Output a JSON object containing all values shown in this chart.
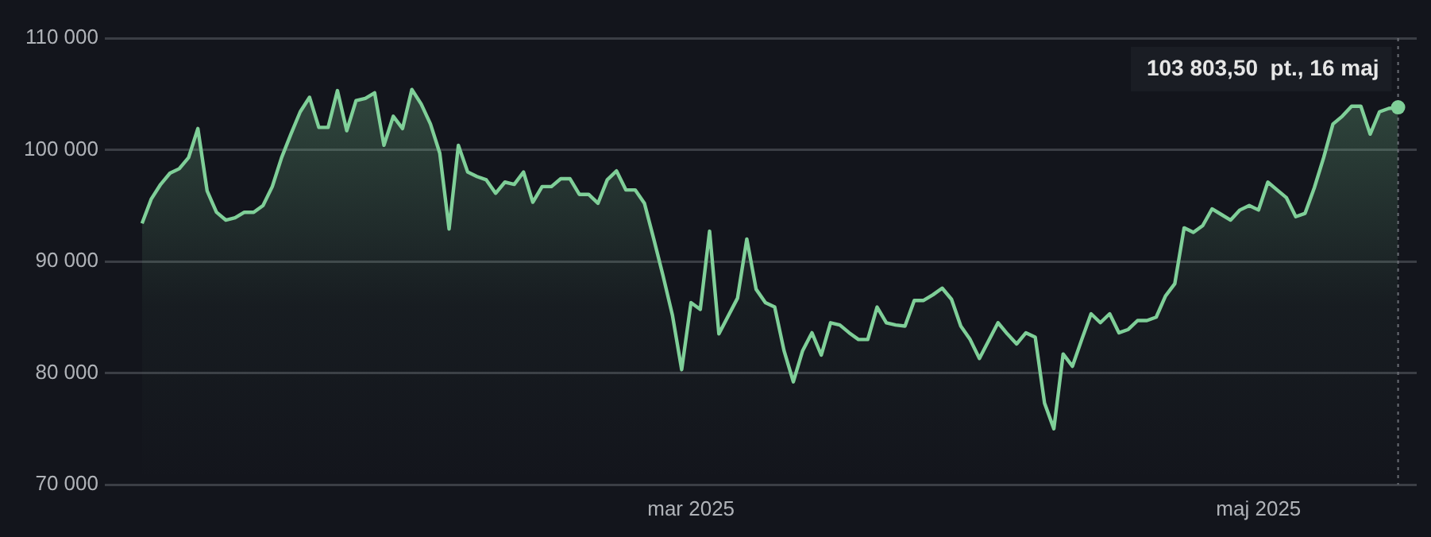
{
  "chart_data": {
    "type": "area",
    "x": [
      "2025-01-01",
      "2025-01-02",
      "2025-01-03",
      "2025-01-04",
      "2025-01-05",
      "2025-01-06",
      "2025-01-07",
      "2025-01-08",
      "2025-01-09",
      "2025-01-10",
      "2025-01-11",
      "2025-01-12",
      "2025-01-13",
      "2025-01-14",
      "2025-01-15",
      "2025-01-16",
      "2025-01-17",
      "2025-01-18",
      "2025-01-19",
      "2025-01-20",
      "2025-01-21",
      "2025-01-22",
      "2025-01-23",
      "2025-01-24",
      "2025-01-25",
      "2025-01-26",
      "2025-01-27",
      "2025-01-28",
      "2025-01-29",
      "2025-01-30",
      "2025-01-31",
      "2025-02-01",
      "2025-02-02",
      "2025-02-03",
      "2025-02-04",
      "2025-02-05",
      "2025-02-06",
      "2025-02-07",
      "2025-02-08",
      "2025-02-09",
      "2025-02-10",
      "2025-02-11",
      "2025-02-12",
      "2025-02-13",
      "2025-02-14",
      "2025-02-15",
      "2025-02-16",
      "2025-02-17",
      "2025-02-18",
      "2025-02-19",
      "2025-02-20",
      "2025-02-21",
      "2025-02-22",
      "2025-02-23",
      "2025-02-24",
      "2025-02-25",
      "2025-02-26",
      "2025-02-27",
      "2025-02-28",
      "2025-03-01",
      "2025-03-02",
      "2025-03-03",
      "2025-03-04",
      "2025-03-06",
      "2025-03-07",
      "2025-03-08",
      "2025-03-09",
      "2025-03-10",
      "2025-03-11",
      "2025-03-12",
      "2025-03-13",
      "2025-03-14",
      "2025-03-15",
      "2025-03-16",
      "2025-03-17",
      "2025-03-18",
      "2025-03-19",
      "2025-03-20",
      "2025-03-21",
      "2025-03-22",
      "2025-03-23",
      "2025-03-24",
      "2025-03-25",
      "2025-03-26",
      "2025-03-27",
      "2025-03-28",
      "2025-03-29",
      "2025-03-30",
      "2025-03-31",
      "2025-04-01",
      "2025-04-02",
      "2025-04-03",
      "2025-04-04",
      "2025-04-05",
      "2025-04-06",
      "2025-04-07",
      "2025-04-08",
      "2025-04-09",
      "2025-04-10",
      "2025-04-11",
      "2025-04-12",
      "2025-04-13",
      "2025-04-14",
      "2025-04-15",
      "2025-04-16",
      "2025-04-17",
      "2025-04-18",
      "2025-04-19",
      "2025-04-20",
      "2025-04-21",
      "2025-04-22",
      "2025-04-23",
      "2025-04-24",
      "2025-04-25",
      "2025-04-26",
      "2025-04-27",
      "2025-04-28",
      "2025-04-29",
      "2025-04-30",
      "2025-05-01",
      "2025-05-02",
      "2025-05-03",
      "2025-05-04",
      "2025-05-05",
      "2025-05-06",
      "2025-05-07",
      "2025-05-08",
      "2025-05-09",
      "2025-05-10",
      "2025-05-11",
      "2025-05-12",
      "2025-05-13",
      "2025-05-14",
      "2025-05-15",
      "2025-05-16"
    ],
    "values": [
      93400,
      95600,
      96900,
      97900,
      98300,
      99300,
      101900,
      96300,
      94400,
      93700,
      93900,
      94400,
      94400,
      95000,
      96700,
      99300,
      101400,
      103400,
      104700,
      102000,
      102000,
      105300,
      101700,
      104400,
      104600,
      105100,
      100400,
      103000,
      101900,
      105400,
      104100,
      102300,
      99700,
      92900,
      100400,
      98000,
      97600,
      97300,
      96100,
      97100,
      96900,
      98000,
      95300,
      96700,
      96700,
      97400,
      97400,
      96000,
      96000,
      95200,
      97300,
      98100,
      96400,
      96400,
      95200,
      92000,
      88700,
      85200,
      80300,
      86300,
      85700,
      92700,
      83500,
      86700,
      92000,
      87500,
      86300,
      85900,
      82000,
      79200,
      82000,
      83600,
      81600,
      84500,
      84300,
      83600,
      83000,
      83000,
      85900,
      84500,
      84300,
      84200,
      86500,
      86500,
      87000,
      87600,
      86600,
      84200,
      83000,
      81300,
      82900,
      84500,
      83500,
      82600,
      83600,
      83200,
      77300,
      75000,
      81700,
      80600,
      83000,
      85300,
      84500,
      85300,
      83600,
      83900,
      84700,
      84700,
      85000,
      86900,
      88000,
      93000,
      92600,
      93200,
      94700,
      94200,
      93700,
      94600,
      95000,
      94600,
      97100,
      96400,
      95700,
      94000,
      94300,
      96600,
      99300,
      102300,
      103000,
      103900,
      103900,
      101400,
      103400,
      103700,
      103803.5
    ],
    "color": "#7fcf98",
    "xlim": [
      "2024-12-28",
      "2025-05-18"
    ],
    "xticks": [
      {
        "value": "2025-03-01",
        "label": "mar 2025"
      },
      {
        "value": "2025-05-01",
        "label": "maj 2025"
      }
    ],
    "ylim": [
      70000,
      110000
    ],
    "yticks": [
      {
        "value": 70000,
        "label": "70 000"
      },
      {
        "value": 80000,
        "label": "80 000"
      },
      {
        "value": 90000,
        "label": "90 000"
      },
      {
        "value": 100000,
        "label": "100 000"
      },
      {
        "value": 110000,
        "label": "110 000"
      }
    ],
    "grid": "y",
    "legend": false,
    "marker": "none",
    "line_style": "solid",
    "ref_lines": [
      {
        "axis": "x",
        "value": "2025-05-16",
        "label": null,
        "line_style": "dotted",
        "color": "#6b6e75"
      }
    ],
    "annotations": [
      {
        "text": "103 803,50  pt., 16 maj",
        "x": "2025-05-16",
        "y": 103803.5
      }
    ]
  }
}
